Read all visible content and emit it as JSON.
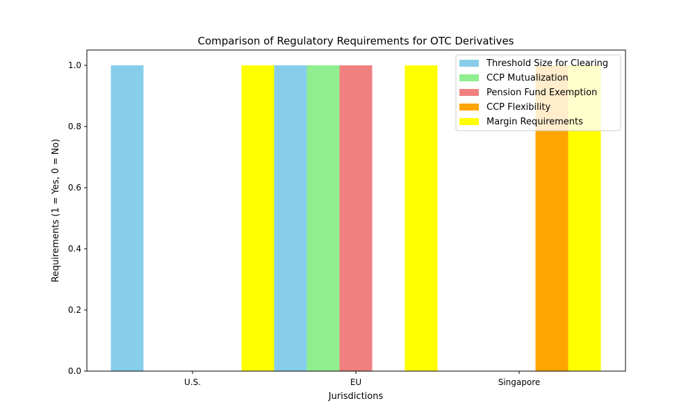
{
  "chart_data": {
    "type": "bar",
    "title": "Comparison of Regulatory Requirements for OTC Derivatives",
    "xlabel": "Jurisdictions",
    "ylabel": "Requirements (1 = Yes, 0 = No)",
    "categories": [
      "U.S.",
      "EU",
      "Singapore"
    ],
    "ylim": [
      0,
      1.05
    ],
    "yticks": [
      "0.0",
      "0.2",
      "0.4",
      "0.6",
      "0.8",
      "1.0"
    ],
    "ytick_values": [
      0,
      0.2,
      0.4,
      0.6,
      0.8,
      1.0
    ],
    "series": [
      {
        "name": "Threshold Size for Clearing",
        "color": "#87ceeb",
        "values": [
          1,
          1,
          0
        ]
      },
      {
        "name": "CCP Mutualization",
        "color": "#90ee90",
        "values": [
          0,
          1,
          0
        ]
      },
      {
        "name": "Pension Fund Exemption",
        "color": "#f08080",
        "values": [
          0,
          1,
          0
        ]
      },
      {
        "name": "CCP Flexibility",
        "color": "#ffa500",
        "values": [
          0,
          0,
          1
        ]
      },
      {
        "name": "Margin Requirements",
        "color": "#ffff00",
        "values": [
          1,
          1,
          1
        ]
      }
    ],
    "legend_position": "top-right",
    "grid": false
  }
}
